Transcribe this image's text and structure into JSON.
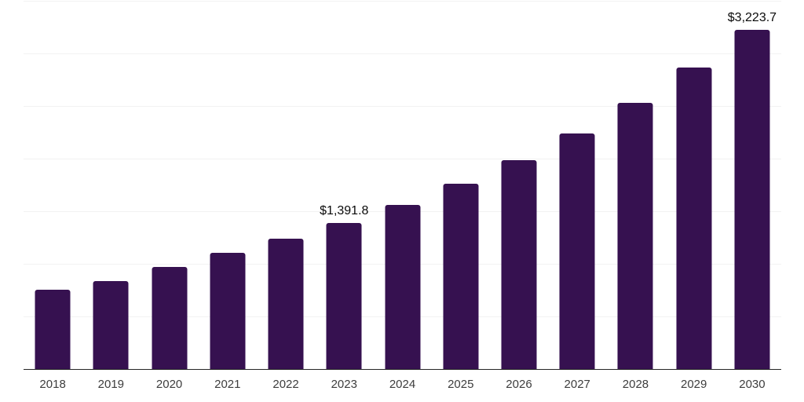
{
  "chart": {
    "background_color": "#ffffff",
    "bar_color": "#361150",
    "grid_color": "#f2f2f2",
    "axis_color": "#262626",
    "tick_label_color": "#3d3d3d",
    "value_label_color": "#0a0a0a"
  },
  "chart_data": {
    "type": "bar",
    "title": "",
    "xlabel": "",
    "ylabel": "",
    "categories": [
      "2018",
      "2019",
      "2020",
      "2021",
      "2022",
      "2023",
      "2024",
      "2025",
      "2026",
      "2027",
      "2028",
      "2029",
      "2030"
    ],
    "values": [
      755,
      835,
      970,
      1105,
      1240,
      1391.8,
      1560,
      1765,
      1985,
      2240,
      2530,
      2865,
      3223.7
    ],
    "annotations": [
      {
        "index": 5,
        "category": "2023",
        "text": "$1,391.8"
      },
      {
        "index": 12,
        "category": "2030",
        "text": "$3,223.7"
      }
    ],
    "ylim": [
      0,
      3500
    ],
    "grid_step": 500,
    "grid": "horizontal",
    "y_axis_tick_labels_visible": false,
    "legend": "none"
  }
}
